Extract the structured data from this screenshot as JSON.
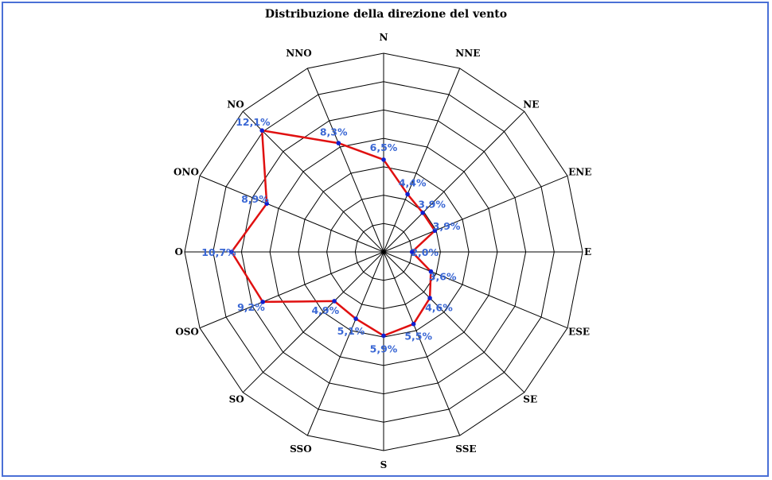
{
  "chart_data": {
    "type": "radar",
    "title": "Distribuzione della direzione del vento",
    "directions": [
      "N",
      "NNE",
      "NE",
      "ENE",
      "E",
      "ESE",
      "SE",
      "SSE",
      "S",
      "SSO",
      "SO",
      "OSO",
      "O",
      "ONO",
      "NO",
      "NNO"
    ],
    "values": [
      6.5,
      4.4,
      3.9,
      3.9,
      2.0,
      3.6,
      4.6,
      5.5,
      5.9,
      5.1,
      4.9,
      9.2,
      10.7,
      8.9,
      12.1,
      8.3
    ],
    "value_labels": [
      "6,5%",
      "4,4%",
      "3,9%",
      "3,9%",
      "2,0%",
      "3,6%",
      "4,6%",
      "5,5%",
      "5,9%",
      "5,1%",
      "4,9%",
      "9,2%",
      "10,7%",
      "8,9%",
      "12,1%",
      "8,3%"
    ],
    "rmax": 14,
    "rings": 7,
    "grid": true,
    "series_color": "#e01010",
    "marker_color": "#1020d0",
    "label_color": "#3a67d4"
  }
}
